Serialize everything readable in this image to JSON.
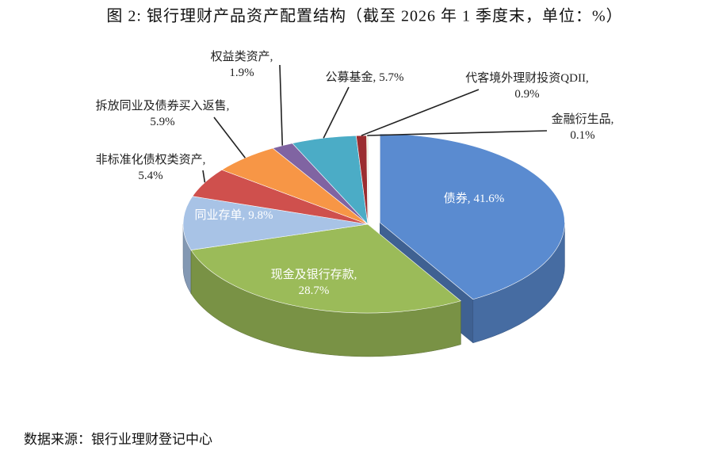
{
  "chart_data": {
    "type": "pie",
    "title": "图 2: 银行理财产品资产配置结构（截至 2026 年 1 季度末，单位：%）",
    "source": "数据来源：银行业理财登记中心",
    "categories": [
      "债券,",
      "现金及银行存款,",
      "同业存单,",
      "非标准化债权类资产,",
      "拆放同业及债券买入返售,",
      "权益类资产,",
      "公募基金,",
      "代客境外理财投资QDII,",
      "金融衍生品,"
    ],
    "values": [
      41.6,
      28.7,
      9.8,
      5.4,
      5.9,
      1.9,
      5.7,
      0.9,
      0.1
    ],
    "value_labels": [
      "41.6%",
      "28.7%",
      "9.8%",
      "5.4%",
      "5.9%",
      "1.9%",
      "5.7%",
      "0.9%",
      "0.1%"
    ],
    "colors": [
      "#5a8bd0",
      "#9bbb59",
      "#a8c3e6",
      "#cf504d",
      "#f79646",
      "#8064a2",
      "#4bacc6",
      "#9b2d30",
      "#f3efc8"
    ]
  }
}
